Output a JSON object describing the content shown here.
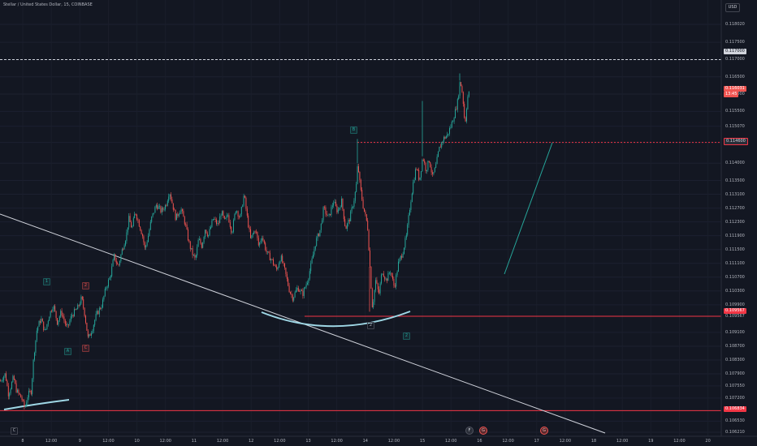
{
  "symbol_title": "Stellar / United States Dollar, 15, COINBASE",
  "currency": "USD",
  "colors": {
    "background": "#131722",
    "up_candle": "#26a69a",
    "down_candle": "#ef5350",
    "support_line": "#f23645",
    "trendline": "#d1d4dc",
    "arc": "#9fd8e6"
  },
  "price_axis": [
    {
      "label": "0.118020",
      "price": 0.11802
    },
    {
      "label": "0.117500",
      "price": 0.1175
    },
    {
      "label": "0.117000",
      "price": 0.117
    },
    {
      "label": "0.116500",
      "price": 0.1165
    },
    {
      "label": "0.116000",
      "price": 0.116
    },
    {
      "label": "0.115500",
      "price": 0.1155
    },
    {
      "label": "0.115070",
      "price": 0.11507
    },
    {
      "label": "0.114600",
      "price": 0.1146
    },
    {
      "label": "0.114000",
      "price": 0.114
    },
    {
      "label": "0.113500",
      "price": 0.1135
    },
    {
      "label": "0.113100",
      "price": 0.1131
    },
    {
      "label": "0.112700",
      "price": 0.1127
    },
    {
      "label": "0.112300",
      "price": 0.1123
    },
    {
      "label": "0.111900",
      "price": 0.1119
    },
    {
      "label": "0.111500",
      "price": 0.1115
    },
    {
      "label": "0.111100",
      "price": 0.1111
    },
    {
      "label": "0.110700",
      "price": 0.1107
    },
    {
      "label": "0.110300",
      "price": 0.1103
    },
    {
      "label": "0.109900",
      "price": 0.1099
    },
    {
      "label": "0.109567",
      "price": 0.109567
    },
    {
      "label": "0.109100",
      "price": 0.1091
    },
    {
      "label": "0.108700",
      "price": 0.1087
    },
    {
      "label": "0.108300",
      "price": 0.1083
    },
    {
      "label": "0.107900",
      "price": 0.1079
    },
    {
      "label": "0.107550",
      "price": 0.10755
    },
    {
      "label": "0.107200",
      "price": 0.1072
    },
    {
      "label": "0.106834",
      "price": 0.106834
    },
    {
      "label": "0.106530",
      "price": 0.10653
    },
    {
      "label": "0.106210",
      "price": 0.10621
    }
  ],
  "time_axis": [
    "8",
    "12:00",
    "9",
    "12:00",
    "10",
    "12:00",
    "11",
    "12:00",
    "12",
    "12:00",
    "13",
    "12:00",
    "14",
    "12:00",
    "15",
    "12:00",
    "16",
    "12:00",
    "17",
    "12:00",
    "18",
    "12:00",
    "19",
    "12:00",
    "20"
  ],
  "price_labels": {
    "current_price": "0.116031",
    "current_timer": "13:45",
    "resistance": "0.114600",
    "support": "0.109567",
    "bottom_support": "0.106834",
    "dashed_level": "0.117000"
  },
  "wave_labels": [
    {
      "text": "1",
      "style": "green"
    },
    {
      "text": "2",
      "style": "red"
    },
    {
      "text": "A",
      "style": "green"
    },
    {
      "text": "C",
      "style": "red"
    },
    {
      "text": "B",
      "style": "green"
    },
    {
      "text": "2",
      "style": "gray"
    },
    {
      "text": "2",
      "style": "green"
    },
    {
      "text": "C",
      "style": "gray"
    }
  ],
  "events": [
    {
      "text": "F",
      "style": "gray"
    },
    {
      "text": "G",
      "style": "red"
    },
    {
      "text": "G",
      "style": "red"
    }
  ],
  "chart_data": {
    "type": "candlestick",
    "title": "Stellar / United States Dollar, 15, COINBASE",
    "interval": "15",
    "ylim": [
      0.10621,
      0.11802
    ],
    "path": [
      [
        0,
        0.1077
      ],
      [
        6,
        0.1079
      ],
      [
        10,
        0.1073
      ],
      [
        16,
        0.1078
      ],
      [
        20,
        0.1074
      ],
      [
        26,
        0.1072
      ],
      [
        30,
        0.1069
      ],
      [
        34,
        0.1073
      ],
      [
        38,
        0.1074
      ],
      [
        41,
        0.1084
      ],
      [
        45,
        0.1092
      ],
      [
        50,
        0.1095
      ],
      [
        55,
        0.1091
      ],
      [
        60,
        0.1096
      ],
      [
        65,
        0.1099
      ],
      [
        70,
        0.1094
      ],
      [
        75,
        0.1097
      ],
      [
        82,
        0.1092
      ],
      [
        88,
        0.1096
      ],
      [
        95,
        0.1098
      ],
      [
        100,
        0.1101
      ],
      [
        104,
        0.1096
      ],
      [
        108,
        0.1089
      ],
      [
        113,
        0.1092
      ],
      [
        118,
        0.1096
      ],
      [
        125,
        0.1099
      ],
      [
        130,
        0.1104
      ],
      [
        135,
        0.1107
      ],
      [
        140,
        0.1113
      ],
      [
        145,
        0.111
      ],
      [
        150,
        0.1115
      ],
      [
        155,
        0.1119
      ],
      [
        158,
        0.1124
      ],
      [
        162,
        0.1121
      ],
      [
        166,
        0.1126
      ],
      [
        170,
        0.1123
      ],
      [
        175,
        0.1119
      ],
      [
        178,
        0.1115
      ],
      [
        182,
        0.1119
      ],
      [
        186,
        0.1124
      ],
      [
        192,
        0.1128
      ],
      [
        198,
        0.1126
      ],
      [
        204,
        0.1128
      ],
      [
        208,
        0.1132
      ],
      [
        212,
        0.1128
      ],
      [
        216,
        0.1124
      ],
      [
        222,
        0.1127
      ],
      [
        228,
        0.1122
      ],
      [
        232,
        0.1117
      ],
      [
        236,
        0.1114
      ],
      [
        240,
        0.1112
      ],
      [
        244,
        0.1118
      ],
      [
        248,
        0.1116
      ],
      [
        252,
        0.1121
      ],
      [
        256,
        0.1119
      ],
      [
        262,
        0.1124
      ],
      [
        268,
        0.1122
      ],
      [
        272,
        0.1126
      ],
      [
        276,
        0.1123
      ],
      [
        280,
        0.1125
      ],
      [
        285,
        0.112
      ],
      [
        290,
        0.1127
      ],
      [
        295,
        0.1124
      ],
      [
        300,
        0.1131
      ],
      [
        304,
        0.1124
      ],
      [
        308,
        0.1118
      ],
      [
        314,
        0.1121
      ],
      [
        318,
        0.1116
      ],
      [
        322,
        0.1119
      ],
      [
        328,
        0.1114
      ],
      [
        334,
        0.1112
      ],
      [
        340,
        0.1109
      ],
      [
        345,
        0.1113
      ],
      [
        350,
        0.1109
      ],
      [
        356,
        0.1103
      ],
      [
        360,
        0.1101
      ],
      [
        366,
        0.1104
      ],
      [
        372,
        0.1102
      ],
      [
        378,
        0.1106
      ],
      [
        382,
        0.111
      ],
      [
        388,
        0.1117
      ],
      [
        394,
        0.1121
      ],
      [
        398,
        0.1127
      ],
      [
        404,
        0.1124
      ],
      [
        410,
        0.1129
      ],
      [
        415,
        0.1126
      ],
      [
        420,
        0.1129
      ],
      [
        425,
        0.1121
      ],
      [
        430,
        0.1124
      ],
      [
        435,
        0.1129
      ],
      [
        438,
        0.1133
      ],
      [
        440,
        0.114
      ],
      [
        443,
        0.1133
      ],
      [
        447,
        0.1127
      ],
      [
        452,
        0.1122
      ],
      [
        455,
        0.111
      ],
      [
        458,
        0.1098
      ],
      [
        462,
        0.1106
      ],
      [
        466,
        0.1102
      ],
      [
        470,
        0.1109
      ],
      [
        475,
        0.1106
      ],
      [
        480,
        0.1109
      ],
      [
        485,
        0.1104
      ],
      [
        490,
        0.1111
      ],
      [
        495,
        0.1114
      ],
      [
        500,
        0.1119
      ],
      [
        504,
        0.1127
      ],
      [
        508,
        0.1134
      ],
      [
        512,
        0.1139
      ],
      [
        516,
        0.1135
      ],
      [
        520,
        0.1142
      ],
      [
        524,
        0.1138
      ],
      [
        528,
        0.1141
      ],
      [
        532,
        0.1136
      ],
      [
        536,
        0.1139
      ],
      [
        540,
        0.1144
      ],
      [
        545,
        0.1147
      ],
      [
        550,
        0.1148
      ],
      [
        555,
        0.1151
      ],
      [
        560,
        0.1155
      ],
      [
        563,
        0.1158
      ],
      [
        566,
        0.1164
      ],
      [
        569,
        0.116
      ],
      [
        572,
        0.1151
      ],
      [
        575,
        0.1159
      ],
      [
        578,
        0.1161
      ]
    ],
    "spikes": [
      [
        440,
        0.1147
      ],
      [
        520,
        0.1158
      ],
      [
        455,
        0.1097
      ],
      [
        566,
        0.1166
      ]
    ],
    "horizontal_lines": [
      {
        "price": 0.109567,
        "style": "solid",
        "color": "#f23645"
      },
      {
        "price": 0.106834,
        "style": "solid",
        "color": "#f23645"
      },
      {
        "price": 0.1146,
        "style": "dotted",
        "color": "#f23645"
      },
      {
        "price": 0.117,
        "style": "dashed",
        "color": "#d1d4dc"
      }
    ]
  }
}
